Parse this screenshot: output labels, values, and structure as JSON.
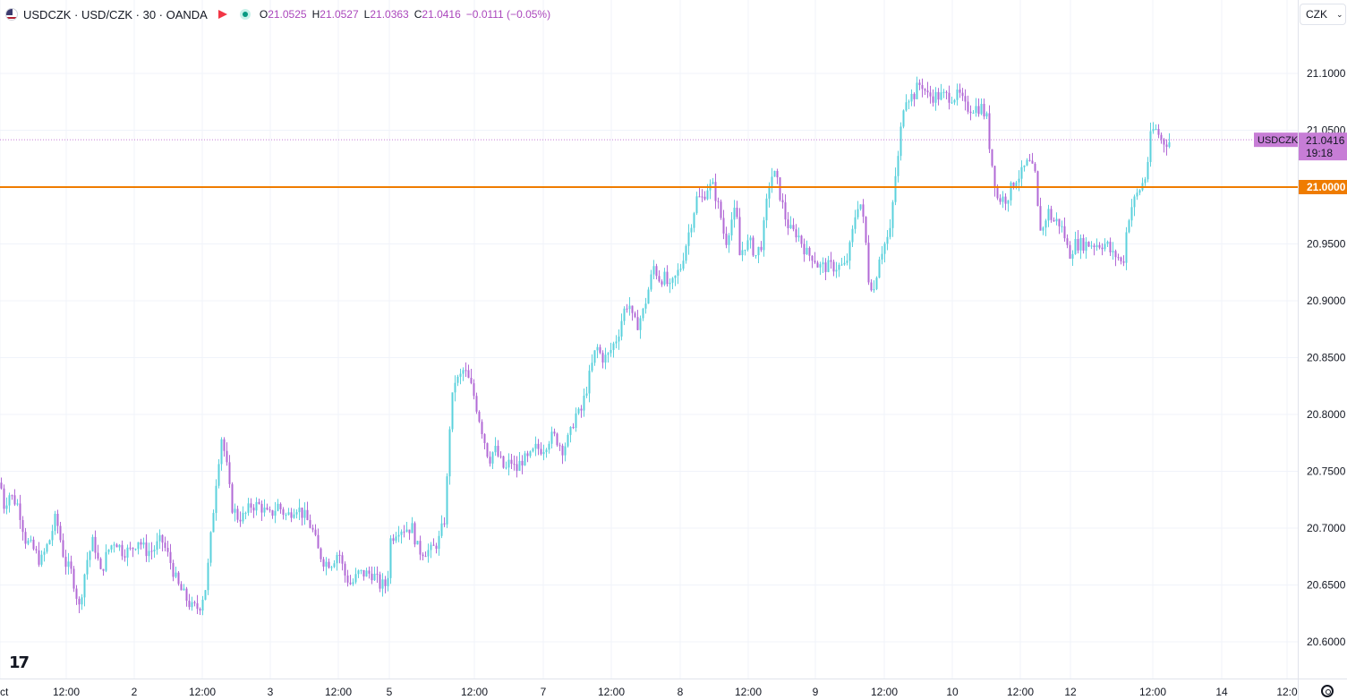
{
  "header": {
    "symbol_title": "USDCZK · USD/CZK · 30 · OANDA",
    "open_key": "O",
    "open_val": "21.0525",
    "high_key": "H",
    "high_val": "21.0527",
    "low_key": "L",
    "low_val": "21.0363",
    "close_key": "C",
    "close_val": "21.0416",
    "change": "−0.0111 (−0.05%)",
    "currency": "CZK"
  },
  "colors": {
    "up": "#5bd1dc",
    "down": "#b26ad6",
    "alert": "#ef7c00",
    "price_label": "#c77dd6",
    "grid": "#f0f3fa",
    "axis_text": "#131722"
  },
  "icons": [
    "usd-flag-icon",
    "red-flag-icon",
    "market-open-icon",
    "chevron-down-icon",
    "tradingview-logo-icon",
    "settings-icon"
  ],
  "chart_data": {
    "type": "candlestick",
    "interval": "30",
    "y_ticks": [
      "21.1000",
      "21.0500",
      "20.9500",
      "20.9000",
      "20.8500",
      "20.8000",
      "20.7500",
      "20.7000",
      "20.6500",
      "20.6000"
    ],
    "y_tick_values": [
      21.1,
      21.05,
      20.95,
      20.9,
      20.85,
      20.8,
      20.75,
      20.7,
      20.65,
      20.6
    ],
    "ylim": [
      20.58,
      21.15
    ],
    "x_ticks": [
      "ct",
      "12:00",
      "2",
      "12:00",
      "3",
      "12:00",
      "5",
      "12:00",
      "7",
      "12:00",
      "8",
      "12:00",
      "9",
      "12:00",
      "10",
      "12:00",
      "12",
      "12:00",
      "14",
      "12:0"
    ],
    "last_price": {
      "symbol": "USDCZK",
      "value": "21.0416",
      "countdown": "19:18",
      "numeric": 21.0416
    },
    "alert_line": {
      "value": "21.0000",
      "numeric": 21.0
    },
    "series_path": [
      [
        0,
        20.74
      ],
      [
        4,
        20.72
      ],
      [
        10,
        20.73
      ],
      [
        20,
        20.72
      ],
      [
        28,
        20.69
      ],
      [
        38,
        20.68
      ],
      [
        45,
        20.67
      ],
      [
        55,
        20.69
      ],
      [
        62,
        20.71
      ],
      [
        72,
        20.67
      ],
      [
        80,
        20.66
      ],
      [
        88,
        20.63
      ],
      [
        96,
        20.67
      ],
      [
        104,
        20.69
      ],
      [
        112,
        20.66
      ],
      [
        120,
        20.68
      ],
      [
        128,
        20.69
      ],
      [
        136,
        20.68
      ],
      [
        145,
        20.68
      ],
      [
        154,
        20.69
      ],
      [
        162,
        20.68
      ],
      [
        170,
        20.68
      ],
      [
        180,
        20.69
      ],
      [
        190,
        20.67
      ],
      [
        198,
        20.65
      ],
      [
        206,
        20.64
      ],
      [
        214,
        20.63
      ],
      [
        222,
        20.63
      ],
      [
        230,
        20.65
      ],
      [
        236,
        20.7
      ],
      [
        242,
        20.75
      ],
      [
        247,
        20.78
      ],
      [
        252,
        20.76
      ],
      [
        258,
        20.72
      ],
      [
        265,
        20.71
      ],
      [
        272,
        20.71
      ],
      [
        280,
        20.72
      ],
      [
        290,
        20.72
      ],
      [
        300,
        20.71
      ],
      [
        310,
        20.72
      ],
      [
        320,
        20.71
      ],
      [
        330,
        20.72
      ],
      [
        340,
        20.71
      ],
      [
        348,
        20.7
      ],
      [
        355,
        20.68
      ],
      [
        362,
        20.67
      ],
      [
        370,
        20.67
      ],
      [
        378,
        20.68
      ],
      [
        384,
        20.66
      ],
      [
        392,
        20.65
      ],
      [
        400,
        20.66
      ],
      [
        408,
        20.66
      ],
      [
        416,
        20.66
      ],
      [
        424,
        20.65
      ],
      [
        432,
        20.65
      ],
      [
        436,
        20.69
      ],
      [
        444,
        20.7
      ],
      [
        452,
        20.7
      ],
      [
        460,
        20.7
      ],
      [
        467,
        20.68
      ],
      [
        474,
        20.68
      ],
      [
        482,
        20.68
      ],
      [
        490,
        20.69
      ],
      [
        497,
        20.71
      ],
      [
        502,
        20.79
      ],
      [
        507,
        20.83
      ],
      [
        512,
        20.83
      ],
      [
        518,
        20.84
      ],
      [
        523,
        20.83
      ],
      [
        528,
        20.82
      ],
      [
        534,
        20.8
      ],
      [
        540,
        20.78
      ],
      [
        546,
        20.76
      ],
      [
        552,
        20.77
      ],
      [
        558,
        20.76
      ],
      [
        564,
        20.75
      ],
      [
        570,
        20.76
      ],
      [
        576,
        20.75
      ],
      [
        582,
        20.76
      ],
      [
        590,
        20.76
      ],
      [
        598,
        20.77
      ],
      [
        606,
        20.77
      ],
      [
        614,
        20.78
      ],
      [
        620,
        20.78
      ],
      [
        628,
        20.77
      ],
      [
        636,
        20.78
      ],
      [
        642,
        20.8
      ],
      [
        648,
        20.8
      ],
      [
        654,
        20.82
      ],
      [
        660,
        20.84
      ],
      [
        666,
        20.86
      ],
      [
        672,
        20.85
      ],
      [
        678,
        20.85
      ],
      [
        684,
        20.86
      ],
      [
        690,
        20.87
      ],
      [
        696,
        20.89
      ],
      [
        702,
        20.9
      ],
      [
        707,
        20.88
      ],
      [
        712,
        20.88
      ],
      [
        718,
        20.89
      ],
      [
        724,
        20.91
      ],
      [
        730,
        20.93
      ],
      [
        736,
        20.92
      ],
      [
        742,
        20.92
      ],
      [
        748,
        20.91
      ],
      [
        754,
        20.92
      ],
      [
        760,
        20.93
      ],
      [
        766,
        20.95
      ],
      [
        772,
        20.97
      ],
      [
        778,
        20.99
      ],
      [
        784,
        20.99
      ],
      [
        790,
        21.0
      ],
      [
        796,
        21.0
      ],
      [
        800,
        20.99
      ],
      [
        806,
        20.97
      ],
      [
        810,
        20.95
      ],
      [
        816,
        20.97
      ],
      [
        822,
        20.98
      ],
      [
        826,
        20.94
      ],
      [
        832,
        20.95
      ],
      [
        838,
        20.95
      ],
      [
        844,
        20.94
      ],
      [
        850,
        20.95
      ],
      [
        854,
        20.97
      ],
      [
        858,
        21.0
      ],
      [
        862,
        21.01
      ],
      [
        866,
        21.01
      ],
      [
        872,
        20.99
      ],
      [
        878,
        20.97
      ],
      [
        884,
        20.96
      ],
      [
        890,
        20.96
      ],
      [
        896,
        20.95
      ],
      [
        902,
        20.94
      ],
      [
        908,
        20.94
      ],
      [
        914,
        20.93
      ],
      [
        920,
        20.93
      ],
      [
        926,
        20.93
      ],
      [
        932,
        20.93
      ],
      [
        938,
        20.93
      ],
      [
        944,
        20.93
      ],
      [
        950,
        20.95
      ],
      [
        956,
        20.98
      ],
      [
        960,
        20.99
      ],
      [
        966,
        20.96
      ],
      [
        970,
        20.92
      ],
      [
        976,
        20.91
      ],
      [
        982,
        20.94
      ],
      [
        988,
        20.95
      ],
      [
        994,
        20.96
      ],
      [
        1000,
        21.01
      ],
      [
        1004,
        21.03
      ],
      [
        1008,
        21.07
      ],
      [
        1012,
        21.08
      ],
      [
        1016,
        21.08
      ],
      [
        1020,
        21.08
      ],
      [
        1026,
        21.09
      ],
      [
        1030,
        21.09
      ],
      [
        1036,
        21.08
      ],
      [
        1042,
        21.08
      ],
      [
        1048,
        21.08
      ],
      [
        1054,
        21.08
      ],
      [
        1060,
        21.08
      ],
      [
        1066,
        21.08
      ],
      [
        1072,
        21.08
      ],
      [
        1078,
        21.07
      ],
      [
        1084,
        21.07
      ],
      [
        1090,
        21.07
      ],
      [
        1096,
        21.07
      ],
      [
        1102,
        21.06
      ],
      [
        1106,
        21.03
      ],
      [
        1110,
        21.01
      ],
      [
        1114,
        20.99
      ],
      [
        1118,
        20.99
      ],
      [
        1124,
        20.99
      ],
      [
        1130,
        21.0
      ],
      [
        1136,
        21.01
      ],
      [
        1140,
        21.01
      ],
      [
        1146,
        21.02
      ],
      [
        1150,
        21.02
      ],
      [
        1156,
        21.01
      ],
      [
        1160,
        20.97
      ],
      [
        1164,
        20.96
      ],
      [
        1170,
        20.98
      ],
      [
        1176,
        20.97
      ],
      [
        1182,
        20.97
      ],
      [
        1188,
        20.96
      ],
      [
        1194,
        20.94
      ],
      [
        1200,
        20.95
      ],
      [
        1206,
        20.95
      ],
      [
        1212,
        20.95
      ],
      [
        1218,
        20.95
      ],
      [
        1224,
        20.95
      ],
      [
        1230,
        20.95
      ],
      [
        1236,
        20.95
      ],
      [
        1242,
        20.94
      ],
      [
        1248,
        20.94
      ],
      [
        1254,
        20.93
      ],
      [
        1258,
        20.96
      ],
      [
        1262,
        20.98
      ],
      [
        1268,
        20.99
      ],
      [
        1274,
        21.0
      ],
      [
        1280,
        21.01
      ],
      [
        1286,
        21.05
      ],
      [
        1292,
        21.05
      ],
      [
        1298,
        21.04
      ],
      [
        1304,
        21.04
      ],
      [
        1308,
        21.04
      ]
    ]
  }
}
